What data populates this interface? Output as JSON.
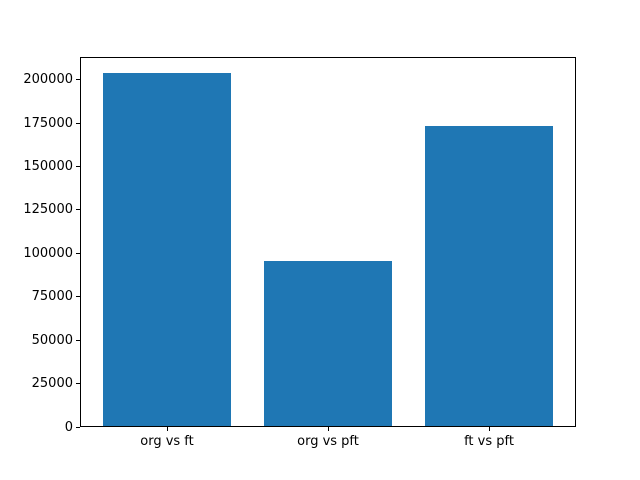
{
  "chart_data": {
    "type": "bar",
    "categories": [
      "org vs ft",
      "org vs pft",
      "ft vs pft"
    ],
    "values": [
      203000,
      95000,
      172500
    ],
    "title": "",
    "xlabel": "",
    "ylabel": "",
    "ylim": [
      0,
      213000
    ],
    "yticks": [
      0,
      25000,
      50000,
      75000,
      100000,
      125000,
      150000,
      175000,
      200000
    ],
    "bar_color": "#1f77b4",
    "bar_width_frac": 0.8,
    "background_color": "#ffffff",
    "spine_color": "#000000",
    "grid": false,
    "legend": false
  }
}
